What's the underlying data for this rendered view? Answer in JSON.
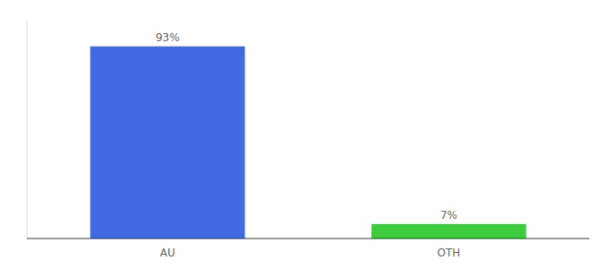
{
  "chart_data": {
    "type": "bar",
    "categories": [
      "AU",
      "OTH"
    ],
    "values": [
      93,
      7
    ],
    "value_labels": [
      "93%",
      "7%"
    ],
    "colors": [
      "#4169e1",
      "#3dcc3d"
    ],
    "ylim": [
      0,
      105
    ],
    "data_labels": true,
    "tick_labels": "x",
    "grid": false
  }
}
